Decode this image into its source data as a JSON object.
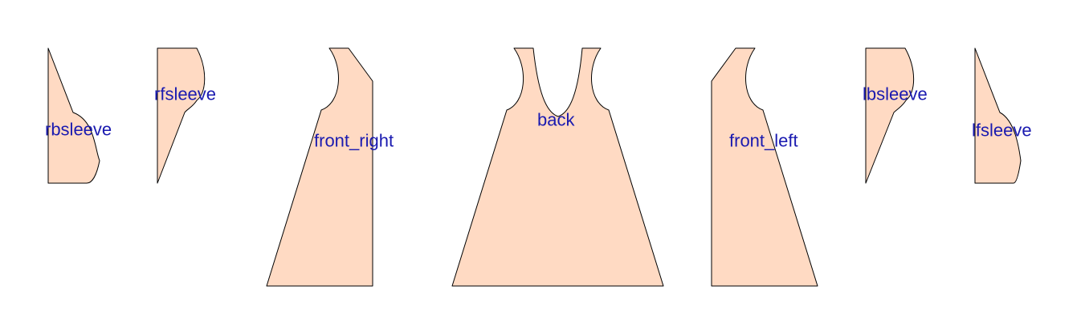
{
  "colors": {
    "piece_fill": "#FFDAC3",
    "piece_stroke": "#000000",
    "label_color": "#1A1AB0",
    "background": "#FFFFFF"
  },
  "pieces": [
    {
      "id": "rbsleeve",
      "label": "rbsleeve"
    },
    {
      "id": "rfsleeve",
      "label": "rfsleeve"
    },
    {
      "id": "front_right",
      "label": "front_right"
    },
    {
      "id": "back",
      "label": "back"
    },
    {
      "id": "front_left",
      "label": "front_left"
    },
    {
      "id": "lbsleeve",
      "label": "lbsleeve"
    },
    {
      "id": "lfsleeve",
      "label": "lfsleeve"
    }
  ]
}
